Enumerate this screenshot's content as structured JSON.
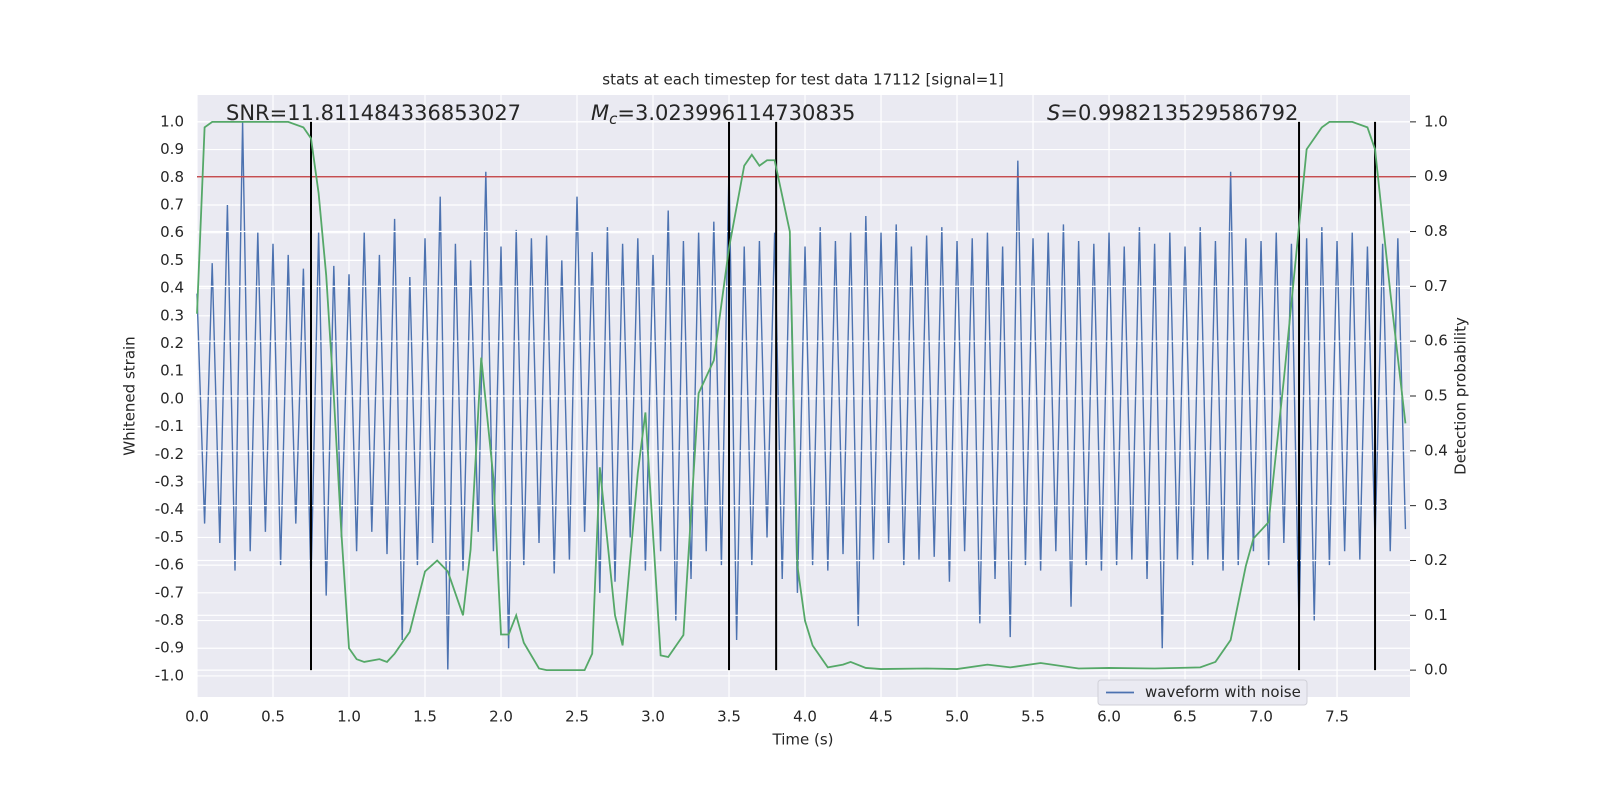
{
  "chart_data": {
    "type": "line",
    "title": "stats at each timestep for test data 17112 [signal=1]",
    "xlabel": "Time (s)",
    "ylabel": "Whitened strain",
    "y2label": "Detection probability",
    "annotations": [
      {
        "text": "SNR=11.811484336853027"
      },
      {
        "symbol": "M",
        "subscript": "c",
        "text": "=3.023996114730835"
      },
      {
        "symbol": "S",
        "text": "=0.998213529586792"
      }
    ],
    "xlim": [
      0,
      7.98
    ],
    "ylim": [
      -1.076,
      1.097
    ],
    "y2lim": [
      -0.049,
      1.049
    ],
    "xticks": [
      {
        "value": 0,
        "label": "0.0"
      },
      0.5,
      {
        "value": 1,
        "label": "1.0"
      },
      1.5,
      {
        "value": 2,
        "label": "2.0"
      },
      2.5,
      {
        "value": 3,
        "label": "3.0"
      },
      3.5,
      {
        "value": 4,
        "label": "4.0"
      },
      4.5,
      {
        "value": 5,
        "label": "5.0"
      },
      5.5,
      {
        "value": 6,
        "label": "6.0"
      },
      6.5,
      {
        "value": 7,
        "label": "7.0"
      },
      7.5
    ],
    "yticks": [
      {
        "value": -1,
        "label": "-1.0"
      },
      -0.9,
      -0.8,
      -0.7,
      -0.6,
      -0.5,
      -0.4,
      -0.3,
      -0.2,
      -0.1,
      {
        "value": 0,
        "label": "0.0"
      },
      0.1,
      0.2,
      0.3,
      0.4,
      0.5,
      0.6,
      0.7,
      0.8,
      0.9,
      {
        "value": 1,
        "label": "1.0"
      }
    ],
    "y2ticks": [
      {
        "value": 0,
        "label": "0.0"
      },
      0.1,
      0.2,
      0.3,
      0.4,
      0.5,
      0.6,
      0.7,
      0.8,
      0.9,
      {
        "value": 1,
        "label": "1.0"
      }
    ],
    "grid": true,
    "legend": "lower right",
    "hline": {
      "value": 0.9,
      "axis": "y2",
      "color": "#c44e52"
    },
    "vlines": {
      "x": [
        0.75,
        3.5,
        3.81,
        7.25,
        7.75
      ],
      "ymin": 0,
      "ymax": 1,
      "axis": "y2",
      "color": "#000000"
    },
    "series": [
      {
        "name": "waveform with noise",
        "color": "#4c72b0",
        "x": [
          0,
          0.05,
          0.1,
          0.15,
          0.2,
          0.25,
          0.3,
          0.35,
          0.4,
          0.45,
          0.5,
          0.55,
          0.6,
          0.65,
          0.7,
          0.75,
          0.8,
          0.85,
          0.9,
          0.95,
          1,
          1.05,
          1.1,
          1.15,
          1.2,
          1.25,
          1.3,
          1.35,
          1.4,
          1.45,
          1.5,
          1.55,
          1.6,
          1.65,
          1.7,
          1.75,
          1.8,
          1.85,
          1.9,
          1.95,
          2,
          2.05,
          2.1,
          2.15,
          2.2,
          2.25,
          2.3,
          2.35,
          2.4,
          2.45,
          2.5,
          2.55,
          2.6,
          2.65,
          2.7,
          2.75,
          2.8,
          2.85,
          2.9,
          2.95,
          3,
          3.05,
          3.1,
          3.15,
          3.2,
          3.25,
          3.3,
          3.35,
          3.4,
          3.45,
          3.5,
          3.55,
          3.6,
          3.65,
          3.7,
          3.75,
          3.8,
          3.85,
          3.9,
          3.95,
          4,
          4.05,
          4.1,
          4.15,
          4.2,
          4.25,
          4.3,
          4.35,
          4.4,
          4.45,
          4.5,
          4.55,
          4.6,
          4.65,
          4.7,
          4.75,
          4.8,
          4.85,
          4.9,
          4.95,
          5,
          5.05,
          5.1,
          5.15,
          5.2,
          5.25,
          5.3,
          5.35,
          5.4,
          5.45,
          5.5,
          5.55,
          5.6,
          5.65,
          5.7,
          5.75,
          5.8,
          5.85,
          5.9,
          5.95,
          6,
          6.05,
          6.1,
          6.15,
          6.2,
          6.25,
          6.3,
          6.35,
          6.4,
          6.45,
          6.5,
          6.55,
          6.6,
          6.65,
          6.7,
          6.75,
          6.8,
          6.85,
          6.9,
          6.95,
          7,
          7.05,
          7.1,
          7.15,
          7.2,
          7.25,
          7.3,
          7.35,
          7.4,
          7.45,
          7.5,
          7.55,
          7.6,
          7.65,
          7.7,
          7.75,
          7.8,
          7.85,
          7.9,
          7.95
        ],
        "values": [
          0.38,
          -0.45,
          0.49,
          -0.52,
          0.7,
          -0.62,
          1.0,
          -0.55,
          0.6,
          -0.48,
          0.56,
          -0.6,
          0.52,
          -0.45,
          0.47,
          -0.67,
          0.6,
          -0.71,
          0.48,
          -0.5,
          0.45,
          -0.55,
          0.6,
          -0.48,
          0.52,
          -0.56,
          0.65,
          -0.87,
          0.44,
          -0.6,
          0.58,
          -0.52,
          0.73,
          -0.98,
          0.56,
          -0.62,
          0.5,
          -0.48,
          0.82,
          -0.55,
          0.55,
          -0.9,
          0.61,
          -0.6,
          0.58,
          -0.52,
          0.59,
          -0.63,
          0.5,
          -0.58,
          0.73,
          -0.48,
          0.53,
          -0.7,
          0.62,
          -0.66,
          0.56,
          -0.5,
          0.58,
          -0.62,
          0.52,
          -0.55,
          0.68,
          -0.8,
          0.57,
          -0.65,
          0.6,
          -0.55,
          0.64,
          -0.6,
          0.84,
          -0.87,
          0.55,
          -0.6,
          0.57,
          -0.5,
          0.6,
          -0.65,
          0.58,
          -0.7,
          0.55,
          -0.6,
          0.62,
          -0.62,
          0.57,
          -0.56,
          0.6,
          -0.82,
          0.66,
          -0.58,
          0.6,
          -0.52,
          0.63,
          -0.6,
          0.55,
          -0.58,
          0.59,
          -0.57,
          0.62,
          -0.66,
          0.57,
          -0.55,
          0.58,
          -0.81,
          0.6,
          -0.65,
          0.55,
          -0.86,
          0.86,
          -0.6,
          0.58,
          -0.62,
          0.6,
          -0.55,
          0.63,
          -0.75,
          0.57,
          -0.6,
          0.56,
          -0.62,
          0.6,
          -0.6,
          0.55,
          -0.58,
          0.62,
          -0.65,
          0.56,
          -0.9,
          0.6,
          -0.58,
          0.55,
          -0.6,
          0.62,
          -0.58,
          0.57,
          -0.62,
          0.82,
          -0.6,
          0.58,
          -0.55,
          0.57,
          -0.6,
          0.6,
          -0.52,
          0.56,
          -0.82,
          0.58,
          -0.8,
          0.62,
          -0.6,
          0.57,
          -0.55,
          0.6,
          -0.58,
          0.55,
          -0.52,
          0.56,
          -0.55,
          0.58,
          -0.47
        ]
      },
      {
        "color": "#55a868",
        "axis": "y2",
        "x": [
          0,
          0.05,
          0.1,
          0.2,
          0.4,
          0.6,
          0.7,
          0.75,
          0.8,
          0.85,
          0.9,
          0.95,
          1,
          1.05,
          1.1,
          1.2,
          1.25,
          1.3,
          1.4,
          1.5,
          1.58,
          1.65,
          1.75,
          1.8,
          1.87,
          1.95,
          2,
          2.05,
          2.1,
          2.15,
          2.25,
          2.3,
          2.4,
          2.55,
          2.6,
          2.65,
          2.75,
          2.8,
          2.9,
          2.95,
          3.05,
          3.1,
          3.2,
          3.3,
          3.4,
          3.5,
          3.6,
          3.65,
          3.7,
          3.75,
          3.8,
          3.9,
          3.95,
          4,
          4.05,
          4.15,
          4.25,
          4.3,
          4.4,
          4.5,
          4.8,
          5.0,
          5.2,
          5.35,
          5.55,
          5.8,
          6.0,
          6.3,
          6.6,
          6.7,
          6.8,
          6.9,
          6.95,
          7.05,
          7.15,
          7.3,
          7.4,
          7.45,
          7.6,
          7.7,
          7.75,
          7.85,
          7.95
        ],
        "values": [
          0.65,
          0.99,
          1.0,
          1.0,
          1.0,
          1.0,
          0.99,
          0.97,
          0.87,
          0.72,
          0.5,
          0.25,
          0.04,
          0.02,
          0.015,
          0.02,
          0.015,
          0.03,
          0.07,
          0.18,
          0.2,
          0.18,
          0.1,
          0.22,
          0.57,
          0.35,
          0.065,
          0.065,
          0.1,
          0.05,
          0.003,
          0.0,
          0.0,
          0.0,
          0.03,
          0.37,
          0.1,
          0.045,
          0.36,
          0.47,
          0.027,
          0.024,
          0.064,
          0.505,
          0.565,
          0.77,
          0.92,
          0.94,
          0.92,
          0.93,
          0.93,
          0.8,
          0.19,
          0.09,
          0.045,
          0.005,
          0.01,
          0.015,
          0.004,
          0.002,
          0.003,
          0.002,
          0.01,
          0.005,
          0.013,
          0.003,
          0.004,
          0.003,
          0.005,
          0.015,
          0.055,
          0.19,
          0.24,
          0.27,
          0.53,
          0.95,
          0.99,
          1.0,
          1.0,
          0.99,
          0.95,
          0.69,
          0.45
        ]
      }
    ]
  }
}
